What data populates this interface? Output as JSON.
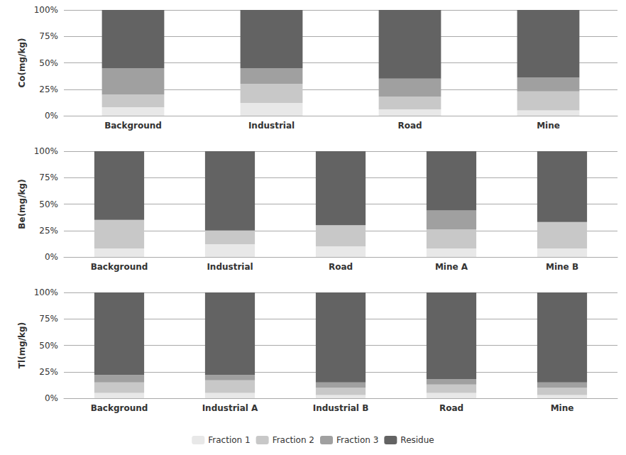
{
  "chart_data": [
    {
      "type": "bar",
      "stacked": true,
      "grid": true,
      "ylabel": "Co(mg/kg)",
      "categories": [
        "Background",
        "Industrial",
        "Road",
        "Mine"
      ],
      "series": [
        {
          "name": "Fraction 1",
          "color": "#e8e8e8",
          "values": [
            8,
            12,
            6,
            5
          ]
        },
        {
          "name": "Fraction 2",
          "color": "#c8c8c8",
          "values": [
            12,
            18,
            12,
            18
          ]
        },
        {
          "name": "Fraction 3",
          "color": "#a0a0a0",
          "values": [
            25,
            15,
            17,
            13
          ]
        },
        {
          "name": "Residue",
          "color": "#636363",
          "values": [
            55,
            55,
            65,
            64
          ]
        }
      ],
      "ylim": [
        0,
        100
      ],
      "yticks": [
        {
          "value": 0,
          "label": "0%"
        },
        {
          "value": 25,
          "label": "25%"
        },
        {
          "value": 50,
          "label": "50%"
        },
        {
          "value": 75,
          "label": "75%"
        },
        {
          "value": 100,
          "label": "100%"
        }
      ]
    },
    {
      "type": "bar",
      "stacked": true,
      "grid": true,
      "ylabel": "Be(mg/kg)",
      "categories": [
        "Background",
        "Industrial",
        "Road",
        "Mine A",
        "Mine B"
      ],
      "series": [
        {
          "name": "Fraction 1",
          "color": "#e8e8e8",
          "values": [
            8,
            12,
            10,
            8,
            8
          ]
        },
        {
          "name": "Fraction 2",
          "color": "#c8c8c8",
          "values": [
            27,
            13,
            20,
            18,
            25
          ]
        },
        {
          "name": "Fraction 3",
          "color": "#a0a0a0",
          "values": [
            0,
            0,
            0,
            18,
            0
          ]
        },
        {
          "name": "Residue",
          "color": "#636363",
          "values": [
            65,
            75,
            70,
            56,
            67
          ]
        }
      ],
      "ylim": [
        0,
        100
      ],
      "yticks": [
        {
          "value": 0,
          "label": "0%"
        },
        {
          "value": 25,
          "label": "25%"
        },
        {
          "value": 50,
          "label": "50%"
        },
        {
          "value": 75,
          "label": "75%"
        },
        {
          "value": 100,
          "label": "100%"
        }
      ]
    },
    {
      "type": "bar",
      "stacked": true,
      "grid": true,
      "legend": "bottom",
      "ylabel": "Tl(mg/kg)",
      "categories": [
        "Background",
        "Industrial A",
        "Industrial B",
        "Road",
        "Mine"
      ],
      "series": [
        {
          "name": "Fraction 1",
          "color": "#e8e8e8",
          "values": [
            5,
            5,
            3,
            5,
            3
          ]
        },
        {
          "name": "Fraction 2",
          "color": "#c8c8c8",
          "values": [
            10,
            12,
            7,
            8,
            7
          ]
        },
        {
          "name": "Fraction 3",
          "color": "#a0a0a0",
          "values": [
            7,
            5,
            5,
            5,
            5
          ]
        },
        {
          "name": "Residue",
          "color": "#636363",
          "values": [
            78,
            78,
            85,
            82,
            85
          ]
        }
      ],
      "ylim": [
        0,
        100
      ],
      "yticks": [
        {
          "value": 0,
          "label": "0%"
        },
        {
          "value": 25,
          "label": "25%"
        },
        {
          "value": 50,
          "label": "50%"
        },
        {
          "value": 75,
          "label": "75%"
        },
        {
          "value": 100,
          "label": "100%"
        }
      ]
    }
  ]
}
